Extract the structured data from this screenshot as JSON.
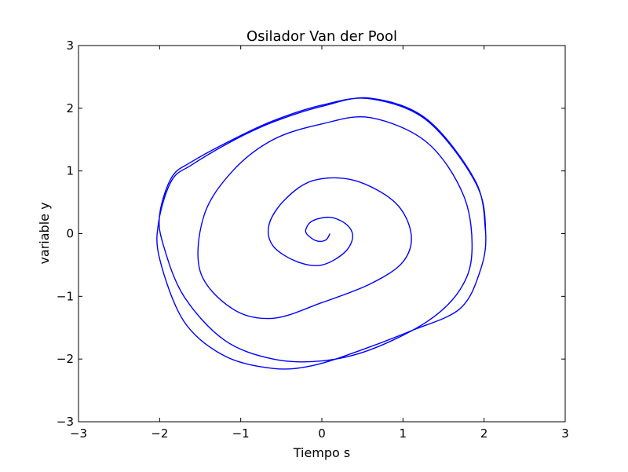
{
  "chart_data": {
    "type": "line",
    "title": "Osilador Van der Pool",
    "xlabel": "Tiempo s",
    "ylabel": "variable y",
    "xlim": [
      -3,
      3
    ],
    "ylim": [
      -3,
      3
    ],
    "xticks": [
      -3,
      -2,
      -1,
      0,
      1,
      2,
      3
    ],
    "yticks": [
      -3,
      -2,
      -1,
      0,
      1,
      2,
      3
    ],
    "xtick_labels": [
      "−3",
      "−2",
      "−1",
      "0",
      "1",
      "2",
      "3"
    ],
    "ytick_labels": [
      "−3",
      "−2",
      "−1",
      "0",
      "1",
      "2",
      "3"
    ],
    "grid": false,
    "series": [
      {
        "color": "#0000ff",
        "x": [
          0.1,
          0.05,
          -0.05,
          -0.15,
          -0.2,
          -0.12,
          0.1,
          0.3,
          0.38,
          0.28,
          0.0,
          -0.3,
          -0.6,
          -0.65,
          -0.45,
          -0.1,
          0.4,
          0.9,
          1.1,
          1.0,
          0.6,
          0.0,
          -0.6,
          -1.1,
          -1.5,
          -1.45,
          -1.1,
          -0.6,
          0.0,
          0.6,
          1.3,
          1.75,
          1.85,
          1.7,
          1.3,
          0.6,
          0.0,
          -0.6,
          -1.2,
          -1.7,
          -1.95,
          -2.0,
          -1.85,
          -1.6,
          -1.1,
          -0.6,
          0.0,
          0.6,
          1.3,
          1.9,
          2.02,
          1.95,
          1.7,
          1.1,
          0.5,
          -0.1,
          -0.6,
          -1.2,
          -1.7,
          -2.0,
          -2.01,
          -1.85,
          -1.6,
          -1.1,
          -0.6,
          0.0,
          0.6,
          1.3,
          1.9,
          2.02
        ],
        "y": [
          0.0,
          -0.1,
          -0.12,
          -0.05,
          0.05,
          0.2,
          0.26,
          0.15,
          -0.05,
          -0.3,
          -0.5,
          -0.45,
          -0.2,
          0.15,
          0.55,
          0.85,
          0.85,
          0.5,
          0.0,
          -0.45,
          -0.8,
          -1.1,
          -1.35,
          -1.2,
          -0.6,
          0.3,
          1.0,
          1.5,
          1.75,
          1.85,
          1.45,
          0.6,
          -0.3,
          -0.9,
          -1.4,
          -1.85,
          -2.03,
          -2.0,
          -1.7,
          -1.0,
          -0.2,
          0.3,
          0.9,
          1.15,
          1.5,
          1.8,
          2.05,
          2.15,
          1.8,
          0.8,
          0.0,
          -0.6,
          -1.2,
          -1.55,
          -1.85,
          -2.1,
          -2.15,
          -1.95,
          -1.4,
          -0.4,
          0.2,
          0.85,
          1.1,
          1.48,
          1.78,
          2.03,
          2.16,
          1.82,
          0.82,
          0.02
        ]
      }
    ]
  }
}
